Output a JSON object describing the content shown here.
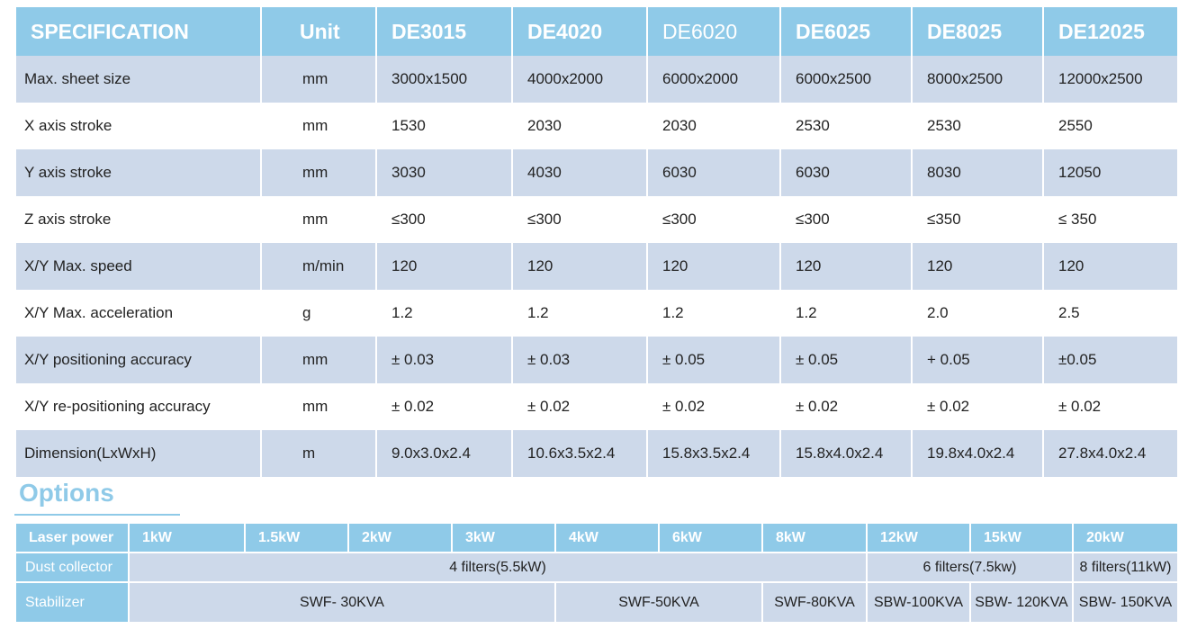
{
  "spec": {
    "header": [
      "SPECIFICATION",
      "Unit",
      "DE3015",
      "DE4020",
      "DE6020",
      "DE6025",
      "DE8025",
      "DE12025"
    ],
    "rows": [
      [
        "Max. sheet size",
        "mm",
        "3000x1500",
        "4000x2000",
        "6000x2000",
        "6000x2500",
        "8000x2500",
        "12000x2500"
      ],
      [
        "X axis stroke",
        "mm",
        "1530",
        "2030",
        "2030",
        "2530",
        "2530",
        "2550"
      ],
      [
        "Y axis stroke",
        "mm",
        "3030",
        "4030",
        "6030",
        "6030",
        "8030",
        "12050"
      ],
      [
        "Z axis stroke",
        "mm",
        "≤300",
        "≤300",
        "≤300",
        "≤300",
        "≤350",
        "≤ 350"
      ],
      [
        "X/Y Max. speed",
        "m/min",
        "120",
        "120",
        "120",
        "120",
        "120",
        "120"
      ],
      [
        "X/Y Max.  acceleration",
        "g",
        "1.2",
        "1.2",
        "1.2",
        "1.2",
        "2.0",
        "2.5"
      ],
      [
        "X/Y positioning accuracy",
        "mm",
        "± 0.03",
        "± 0.03",
        "± 0.05",
        "± 0.05",
        "+ 0.05",
        "±0.05"
      ],
      [
        "X/Y re-positioning accuracy",
        "mm",
        "± 0.02",
        "± 0.02",
        "± 0.02",
        "± 0.02",
        "± 0.02",
        "± 0.02"
      ],
      [
        "Dimension(LxWxH)",
        "m",
        "9.0x3.0x2.4",
        "10.6x3.5x2.4",
        "15.8x3.5x2.4",
        "15.8x4.0x2.4",
        "19.8x4.0x2.4",
        "27.8x4.0x2.4"
      ]
    ]
  },
  "options": {
    "title": "Options",
    "rows": [
      {
        "label": "Laser power",
        "cells": [
          "1kW",
          "1.5kW",
          "2kW",
          "3kW",
          "4kW",
          "6kW",
          "8kW",
          "12kW",
          "15kW",
          "20kW"
        ]
      },
      {
        "label": "Dust collector",
        "cells": [
          "4 filters(5.5kW)",
          "6 filters(7.5kw)",
          "8 filters(11kW)"
        ]
      },
      {
        "label": "Stabilizer",
        "cells": [
          "SWF- 30KVA",
          "SWF-50KVA",
          "SWF-80KVA",
          "SBW-100KVA",
          "SBW- 120KVA",
          "SBW- 150KVA"
        ]
      }
    ]
  }
}
